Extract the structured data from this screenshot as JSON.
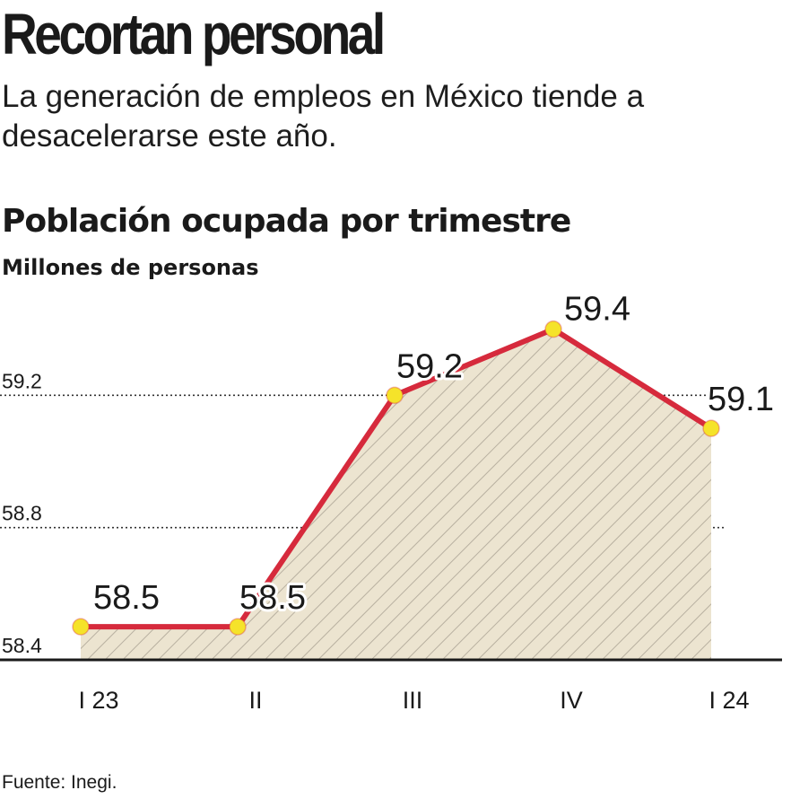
{
  "header": {
    "title": "Recortan personal",
    "subtitle": "La generación de empleos en México tiende a desacelerarse este año."
  },
  "chart_data": {
    "type": "area",
    "title": "Población ocupada por trimestre",
    "ylabel": "Millones de personas",
    "xlabel": "",
    "categories": [
      "I 23",
      "II",
      "III",
      "IV",
      "I 24"
    ],
    "series": [
      {
        "values": [
          58.5,
          58.5,
          59.2,
          59.4,
          59.1
        ]
      }
    ],
    "data_labels": [
      "58.5",
      "58.5",
      "59.2",
      "59.4",
      "59.1"
    ],
    "yticks": [
      "58.4",
      "58.8",
      "59.2"
    ],
    "ylim": [
      58.4,
      59.6
    ],
    "grid": true,
    "legend": "none",
    "colors": {
      "line": "#d62a3c",
      "marker": "#f5e32a",
      "fill": "#ece4d0",
      "hatch": "#b8b0a0",
      "grid": "#333333"
    }
  },
  "footer": {
    "source": "Fuente: Inegi."
  }
}
